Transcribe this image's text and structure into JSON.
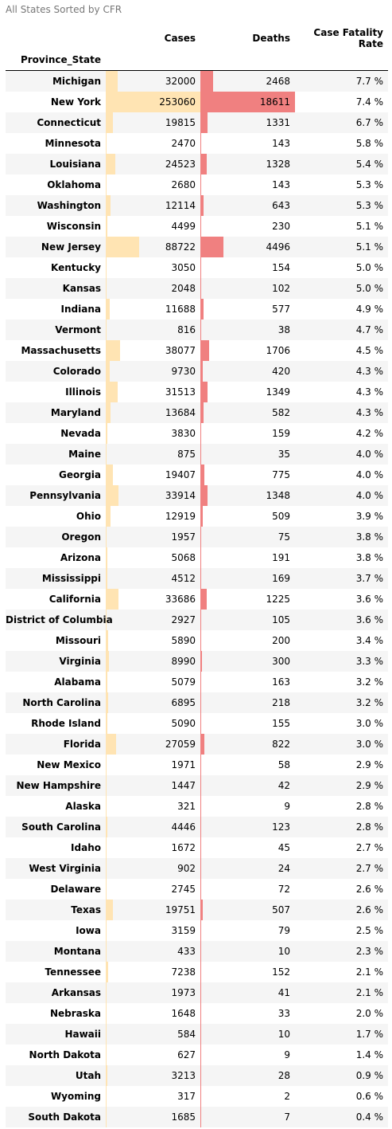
{
  "caption": "All States Sorted by CFR",
  "columns": {
    "cases": "Cases",
    "deaths": "Deaths",
    "cfr": "Case Fatality Rate",
    "index": "Province_State"
  },
  "colors": {
    "cases_bar": "#ffe4b3",
    "deaths_bar": "#f08080",
    "stripe": "#f5f5f5"
  },
  "rows": [
    {
      "state": "Michigan",
      "cases": "32000",
      "deaths": "2468",
      "cfr": "7.7 %"
    },
    {
      "state": "New York",
      "cases": "253060",
      "deaths": "18611",
      "cfr": "7.4 %"
    },
    {
      "state": "Connecticut",
      "cases": "19815",
      "deaths": "1331",
      "cfr": "6.7 %"
    },
    {
      "state": "Minnesota",
      "cases": "2470",
      "deaths": "143",
      "cfr": "5.8 %"
    },
    {
      "state": "Louisiana",
      "cases": "24523",
      "deaths": "1328",
      "cfr": "5.4 %"
    },
    {
      "state": "Oklahoma",
      "cases": "2680",
      "deaths": "143",
      "cfr": "5.3 %"
    },
    {
      "state": "Washington",
      "cases": "12114",
      "deaths": "643",
      "cfr": "5.3 %"
    },
    {
      "state": "Wisconsin",
      "cases": "4499",
      "deaths": "230",
      "cfr": "5.1 %"
    },
    {
      "state": "New Jersey",
      "cases": "88722",
      "deaths": "4496",
      "cfr": "5.1 %"
    },
    {
      "state": "Kentucky",
      "cases": "3050",
      "deaths": "154",
      "cfr": "5.0 %"
    },
    {
      "state": "Kansas",
      "cases": "2048",
      "deaths": "102",
      "cfr": "5.0 %"
    },
    {
      "state": "Indiana",
      "cases": "11688",
      "deaths": "577",
      "cfr": "4.9 %"
    },
    {
      "state": "Vermont",
      "cases": "816",
      "deaths": "38",
      "cfr": "4.7 %"
    },
    {
      "state": "Massachusetts",
      "cases": "38077",
      "deaths": "1706",
      "cfr": "4.5 %"
    },
    {
      "state": "Colorado",
      "cases": "9730",
      "deaths": "420",
      "cfr": "4.3 %"
    },
    {
      "state": "Illinois",
      "cases": "31513",
      "deaths": "1349",
      "cfr": "4.3 %"
    },
    {
      "state": "Maryland",
      "cases": "13684",
      "deaths": "582",
      "cfr": "4.3 %"
    },
    {
      "state": "Nevada",
      "cases": "3830",
      "deaths": "159",
      "cfr": "4.2 %"
    },
    {
      "state": "Maine",
      "cases": "875",
      "deaths": "35",
      "cfr": "4.0 %"
    },
    {
      "state": "Georgia",
      "cases": "19407",
      "deaths": "775",
      "cfr": "4.0 %"
    },
    {
      "state": "Pennsylvania",
      "cases": "33914",
      "deaths": "1348",
      "cfr": "4.0 %"
    },
    {
      "state": "Ohio",
      "cases": "12919",
      "deaths": "509",
      "cfr": "3.9 %"
    },
    {
      "state": "Oregon",
      "cases": "1957",
      "deaths": "75",
      "cfr": "3.8 %"
    },
    {
      "state": "Arizona",
      "cases": "5068",
      "deaths": "191",
      "cfr": "3.8 %"
    },
    {
      "state": "Mississippi",
      "cases": "4512",
      "deaths": "169",
      "cfr": "3.7 %"
    },
    {
      "state": "California",
      "cases": "33686",
      "deaths": "1225",
      "cfr": "3.6 %"
    },
    {
      "state": "District of Columbia",
      "cases": "2927",
      "deaths": "105",
      "cfr": "3.6 %"
    },
    {
      "state": "Missouri",
      "cases": "5890",
      "deaths": "200",
      "cfr": "3.4 %"
    },
    {
      "state": "Virginia",
      "cases": "8990",
      "deaths": "300",
      "cfr": "3.3 %"
    },
    {
      "state": "Alabama",
      "cases": "5079",
      "deaths": "163",
      "cfr": "3.2 %"
    },
    {
      "state": "North Carolina",
      "cases": "6895",
      "deaths": "218",
      "cfr": "3.2 %"
    },
    {
      "state": "Rhode Island",
      "cases": "5090",
      "deaths": "155",
      "cfr": "3.0 %"
    },
    {
      "state": "Florida",
      "cases": "27059",
      "deaths": "822",
      "cfr": "3.0 %"
    },
    {
      "state": "New Mexico",
      "cases": "1971",
      "deaths": "58",
      "cfr": "2.9 %"
    },
    {
      "state": "New Hampshire",
      "cases": "1447",
      "deaths": "42",
      "cfr": "2.9 %"
    },
    {
      "state": "Alaska",
      "cases": "321",
      "deaths": "9",
      "cfr": "2.8 %"
    },
    {
      "state": "South Carolina",
      "cases": "4446",
      "deaths": "123",
      "cfr": "2.8 %"
    },
    {
      "state": "Idaho",
      "cases": "1672",
      "deaths": "45",
      "cfr": "2.7 %"
    },
    {
      "state": "West Virginia",
      "cases": "902",
      "deaths": "24",
      "cfr": "2.7 %"
    },
    {
      "state": "Delaware",
      "cases": "2745",
      "deaths": "72",
      "cfr": "2.6 %"
    },
    {
      "state": "Texas",
      "cases": "19751",
      "deaths": "507",
      "cfr": "2.6 %"
    },
    {
      "state": "Iowa",
      "cases": "3159",
      "deaths": "79",
      "cfr": "2.5 %"
    },
    {
      "state": "Montana",
      "cases": "433",
      "deaths": "10",
      "cfr": "2.3 %"
    },
    {
      "state": "Tennessee",
      "cases": "7238",
      "deaths": "152",
      "cfr": "2.1 %"
    },
    {
      "state": "Arkansas",
      "cases": "1973",
      "deaths": "41",
      "cfr": "2.1 %"
    },
    {
      "state": "Nebraska",
      "cases": "1648",
      "deaths": "33",
      "cfr": "2.0 %"
    },
    {
      "state": "Hawaii",
      "cases": "584",
      "deaths": "10",
      "cfr": "1.7 %"
    },
    {
      "state": "North Dakota",
      "cases": "627",
      "deaths": "9",
      "cfr": "1.4 %"
    },
    {
      "state": "Utah",
      "cases": "3213",
      "deaths": "28",
      "cfr": "0.9 %"
    },
    {
      "state": "Wyoming",
      "cases": "317",
      "deaths": "2",
      "cfr": "0.6 %"
    },
    {
      "state": "South Dakota",
      "cases": "1685",
      "deaths": "7",
      "cfr": "0.4 %"
    }
  ]
}
